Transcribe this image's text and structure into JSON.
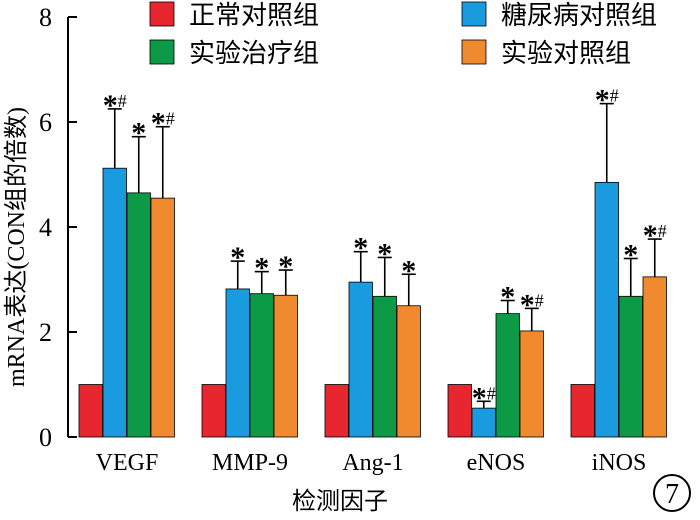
{
  "chart_data": {
    "type": "bar",
    "categories": [
      "VEGF",
      "MMP-9",
      "Ang-1",
      "eNOS",
      "iNOS"
    ],
    "series": [
      {
        "name": "正常对照组",
        "color": "#e8262f",
        "values": [
          1,
          1,
          1,
          1,
          1
        ],
        "errors": [
          0,
          0,
          0,
          0,
          0
        ],
        "marks": [
          "",
          "",
          "",
          "",
          ""
        ]
      },
      {
        "name": "糖尿病对照组",
        "color": "#1a9be0",
        "values": [
          5.12,
          2.82,
          2.95,
          0.55,
          4.85
        ],
        "errors": [
          1.13,
          0.53,
          0.58,
          0.13,
          1.5
        ],
        "marks": [
          "*#",
          "*",
          "*",
          "*#",
          "*#"
        ]
      },
      {
        "name": "实验治疗组",
        "color": "#0c9a47",
        "values": [
          4.65,
          2.73,
          2.68,
          2.35,
          2.68
        ],
        "errors": [
          1.07,
          0.42,
          0.74,
          0.25,
          0.72
        ],
        "marks": [
          "*",
          "*",
          "*",
          "*",
          "*"
        ]
      },
      {
        "name": "实验对照组",
        "color": "#f08a2e",
        "values": [
          4.55,
          2.7,
          2.5,
          2.02,
          3.05
        ],
        "errors": [
          1.36,
          0.48,
          0.6,
          0.43,
          0.72
        ],
        "marks": [
          "*#",
          "*",
          "*",
          "*#",
          "*#"
        ]
      }
    ],
    "ylabel": "mRNA表达(CON组的倍数)",
    "xlabel": "检测因子",
    "ylim": [
      0,
      8
    ],
    "yticks": [
      0,
      2,
      4,
      6,
      8
    ],
    "grid": false,
    "legend_position": "top"
  },
  "panel_label": "7"
}
